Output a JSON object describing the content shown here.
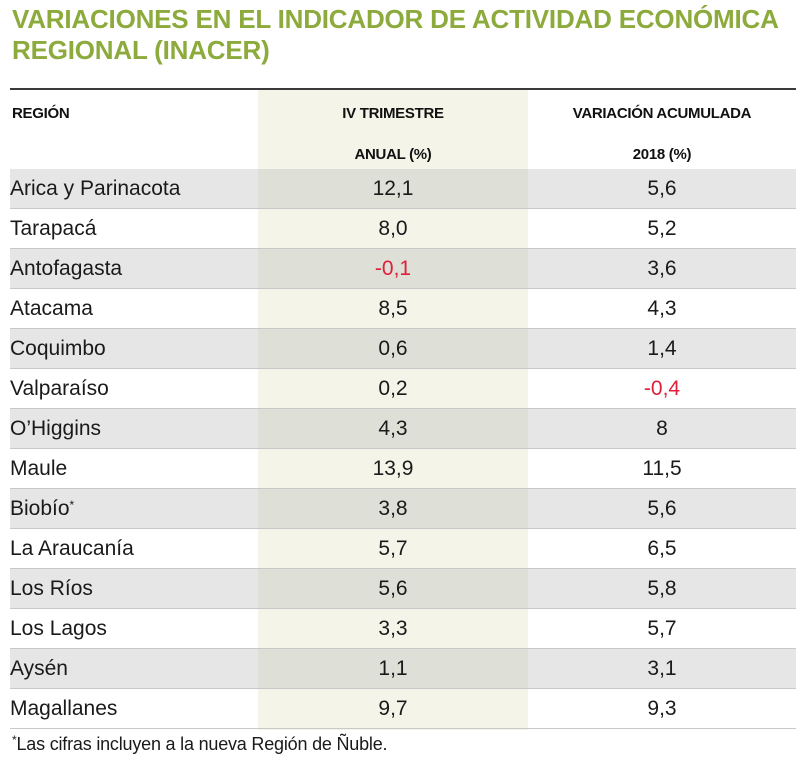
{
  "title": "VARIACIONES EN EL INDICADOR DE ACTIVIDAD ECONÓMICA REGIONAL (INACER)",
  "headers": {
    "region": "REGIÓN",
    "col1_line1": "IV TRIMESTRE",
    "col1_line2": "ANUAL (%)",
    "col2_line1": "VARIACIÓN ACUMULADA",
    "col2_line2": "2018 (%)"
  },
  "colors": {
    "title": "#8cab3c",
    "negative": "#e0203a"
  },
  "chart_data": {
    "type": "table",
    "title": "VARIACIONES EN EL INDICADOR DE ACTIVIDAD ECONÓMICA REGIONAL (INACER)",
    "columns": [
      "REGIÓN",
      "IV TRIMESTRE ANUAL (%)",
      "VARIACIÓN ACUMULADA 2018 (%)"
    ],
    "rows": [
      {
        "region": "Arica y Parinacota",
        "footnote": "",
        "q4": "12,1",
        "acum": "5,6"
      },
      {
        "region": "Tarapacá",
        "footnote": "",
        "q4": "8,0",
        "acum": "5,2"
      },
      {
        "region": "Antofagasta",
        "footnote": "",
        "q4": "-0,1",
        "acum": "3,6"
      },
      {
        "region": "Atacama",
        "footnote": "",
        "q4": "8,5",
        "acum": "4,3"
      },
      {
        "region": "Coquimbo",
        "footnote": "",
        "q4": "0,6",
        "acum": "1,4"
      },
      {
        "region": "Valparaíso",
        "footnote": "",
        "q4": "0,2",
        "acum": "-0,4"
      },
      {
        "region": "O’Higgins",
        "footnote": "",
        "q4": "4,3",
        "acum": "8"
      },
      {
        "region": "Maule",
        "footnote": "",
        "q4": "13,9",
        "acum": "11,5"
      },
      {
        "region": "Biobío",
        "footnote": "*",
        "q4": "3,8",
        "acum": "5,6"
      },
      {
        "region": "La Araucanía",
        "footnote": "",
        "q4": "5,7",
        "acum": "6,5"
      },
      {
        "region": "Los Ríos",
        "footnote": "",
        "q4": "5,6",
        "acum": "5,8"
      },
      {
        "region": "Los Lagos",
        "footnote": "",
        "q4": "3,3",
        "acum": "5,7"
      },
      {
        "region": "Aysén",
        "footnote": "",
        "q4": "1,1",
        "acum": "3,1"
      },
      {
        "region": "Magallanes",
        "footnote": "",
        "q4": "9,7",
        "acum": "9,3"
      }
    ]
  },
  "footnote": {
    "mark": "*",
    "text": "Las cifras incluyen a la nueva Región de Ñuble."
  }
}
